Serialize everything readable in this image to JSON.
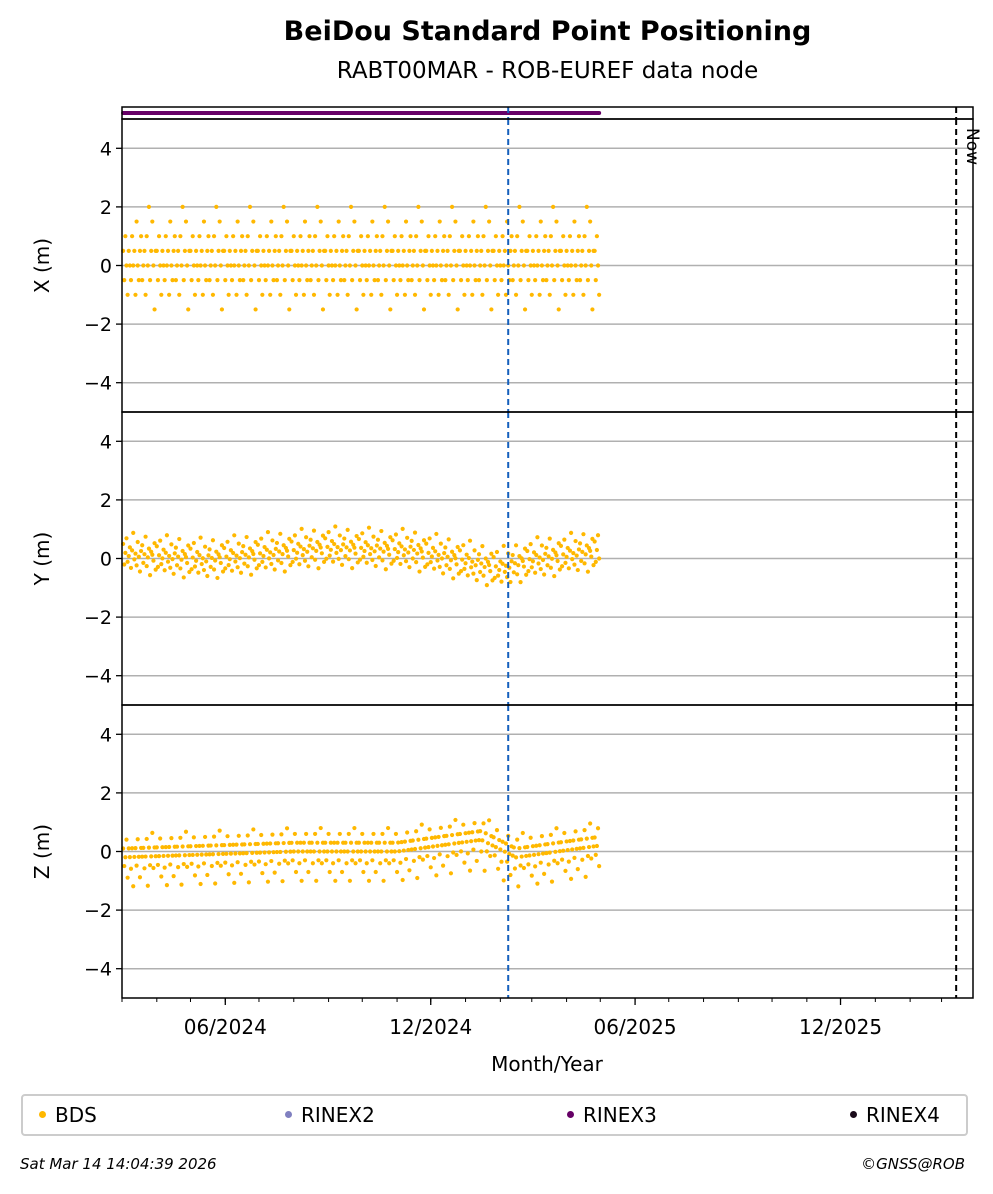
{
  "chart_data": {
    "type": "scatter",
    "title": "BeiDou Standard Point Positioning",
    "subtitle": "RABT00MAR - ROB-EUREF data node",
    "xlabel": "Month/Year",
    "x_range": [
      "2024-03-01",
      "2026-03-29"
    ],
    "x_tick_labels": [
      "06/2024",
      "12/2024",
      "06/2025",
      "12/2025"
    ],
    "x_tick_dates": [
      "2024-06-01",
      "2024-12-01",
      "2025-06-01",
      "2025-12-01"
    ],
    "data_start": "2024-03-02",
    "data_end": "2025-04-30",
    "marker_line": {
      "date": "2025-02-08",
      "color": "#1560bd",
      "style": "dashed"
    },
    "now_line": {
      "date": "2026-03-14",
      "label": "Now",
      "color": "#000000",
      "style": "dashed"
    },
    "rinex_bar": {
      "series": "RINEX3",
      "from": "2024-03-02",
      "to": "2025-04-30",
      "color": "#660066"
    },
    "grid": true,
    "panels": [
      {
        "ylabel": "X (m)",
        "ylim": [
          -5,
          5
        ],
        "yticks": [
          -4,
          -2,
          0,
          2,
          4
        ],
        "pattern": [
          0.5,
          -0.5,
          1.0,
          0.0,
          -1.0,
          0.5,
          0.0,
          -0.5,
          1.0,
          0.0,
          0.5,
          -1.0,
          1.5,
          0.0,
          -0.5,
          0.5,
          1.0,
          -0.5,
          0.0,
          0.5,
          -1.0,
          1.0,
          0.0,
          2.0,
          -0.5,
          0.5,
          1.5,
          0.0,
          -1.5,
          0.5
        ],
        "trend": [
          {
            "date": "2024-03-01",
            "value": 0.0
          },
          {
            "date": "2025-04-30",
            "value": 0.0
          }
        ]
      },
      {
        "ylabel": "Y (m)",
        "ylim": [
          -5,
          5
        ],
        "yticks": [
          -4,
          -2,
          0,
          2,
          4
        ],
        "pattern": [
          0.4,
          -0.3,
          0.1,
          0.6,
          -0.2,
          0.0,
          0.3,
          -0.4,
          0.2,
          0.8,
          -0.1,
          0.1,
          -0.3,
          0.5,
          0.0,
          -0.5,
          0.2,
          0.4,
          -0.2,
          0.1,
          0.7,
          -0.3,
          0.0,
          0.3,
          -0.6,
          0.2,
          0.1,
          -0.1,
          0.5,
          -0.4
        ],
        "trend": [
          {
            "date": "2024-03-01",
            "value": 0.1
          },
          {
            "date": "2024-05-15",
            "value": -0.1
          },
          {
            "date": "2024-09-01",
            "value": 0.3
          },
          {
            "date": "2024-11-15",
            "value": 0.2
          },
          {
            "date": "2025-02-01",
            "value": -0.4
          },
          {
            "date": "2025-03-01",
            "value": -0.1
          },
          {
            "date": "2025-04-30",
            "value": 0.2
          }
        ]
      },
      {
        "ylabel": "Z (m)",
        "ylim": [
          -5,
          5
        ],
        "yticks": [
          -4,
          -2,
          0,
          2,
          4
        ],
        "pattern": [
          0.3,
          -0.3,
          0.0,
          0.6,
          -0.7,
          0.3,
          0.0,
          -0.4,
          0.3,
          -1.0,
          0.0,
          0.3,
          -0.3,
          0.6,
          0.0,
          -0.7,
          0.3,
          0.0,
          0.3,
          -0.4,
          0.0,
          0.6,
          -1.0,
          0.3,
          -0.3,
          0.0,
          0.8,
          -0.4,
          0.3,
          0.0
        ],
        "trend": [
          {
            "date": "2024-03-01",
            "value": -0.2
          },
          {
            "date": "2024-08-01",
            "value": 0.0
          },
          {
            "date": "2024-11-01",
            "value": 0.0
          },
          {
            "date": "2025-01-15",
            "value": 0.4
          },
          {
            "date": "2025-02-15",
            "value": -0.2
          },
          {
            "date": "2025-04-30",
            "value": 0.2
          }
        ]
      }
    ],
    "series": [
      {
        "name": "BDS",
        "color": "#ffb800"
      },
      {
        "name": "RINEX2",
        "color": "#8080c0"
      },
      {
        "name": "RINEX3",
        "color": "#660066"
      },
      {
        "name": "RINEX4",
        "color": "#1a0a1a"
      }
    ],
    "legend_position": "bottom"
  },
  "footer": {
    "timestamp": "Sat Mar 14 14:04:39 2026",
    "credit": "©GNSS@ROB"
  }
}
